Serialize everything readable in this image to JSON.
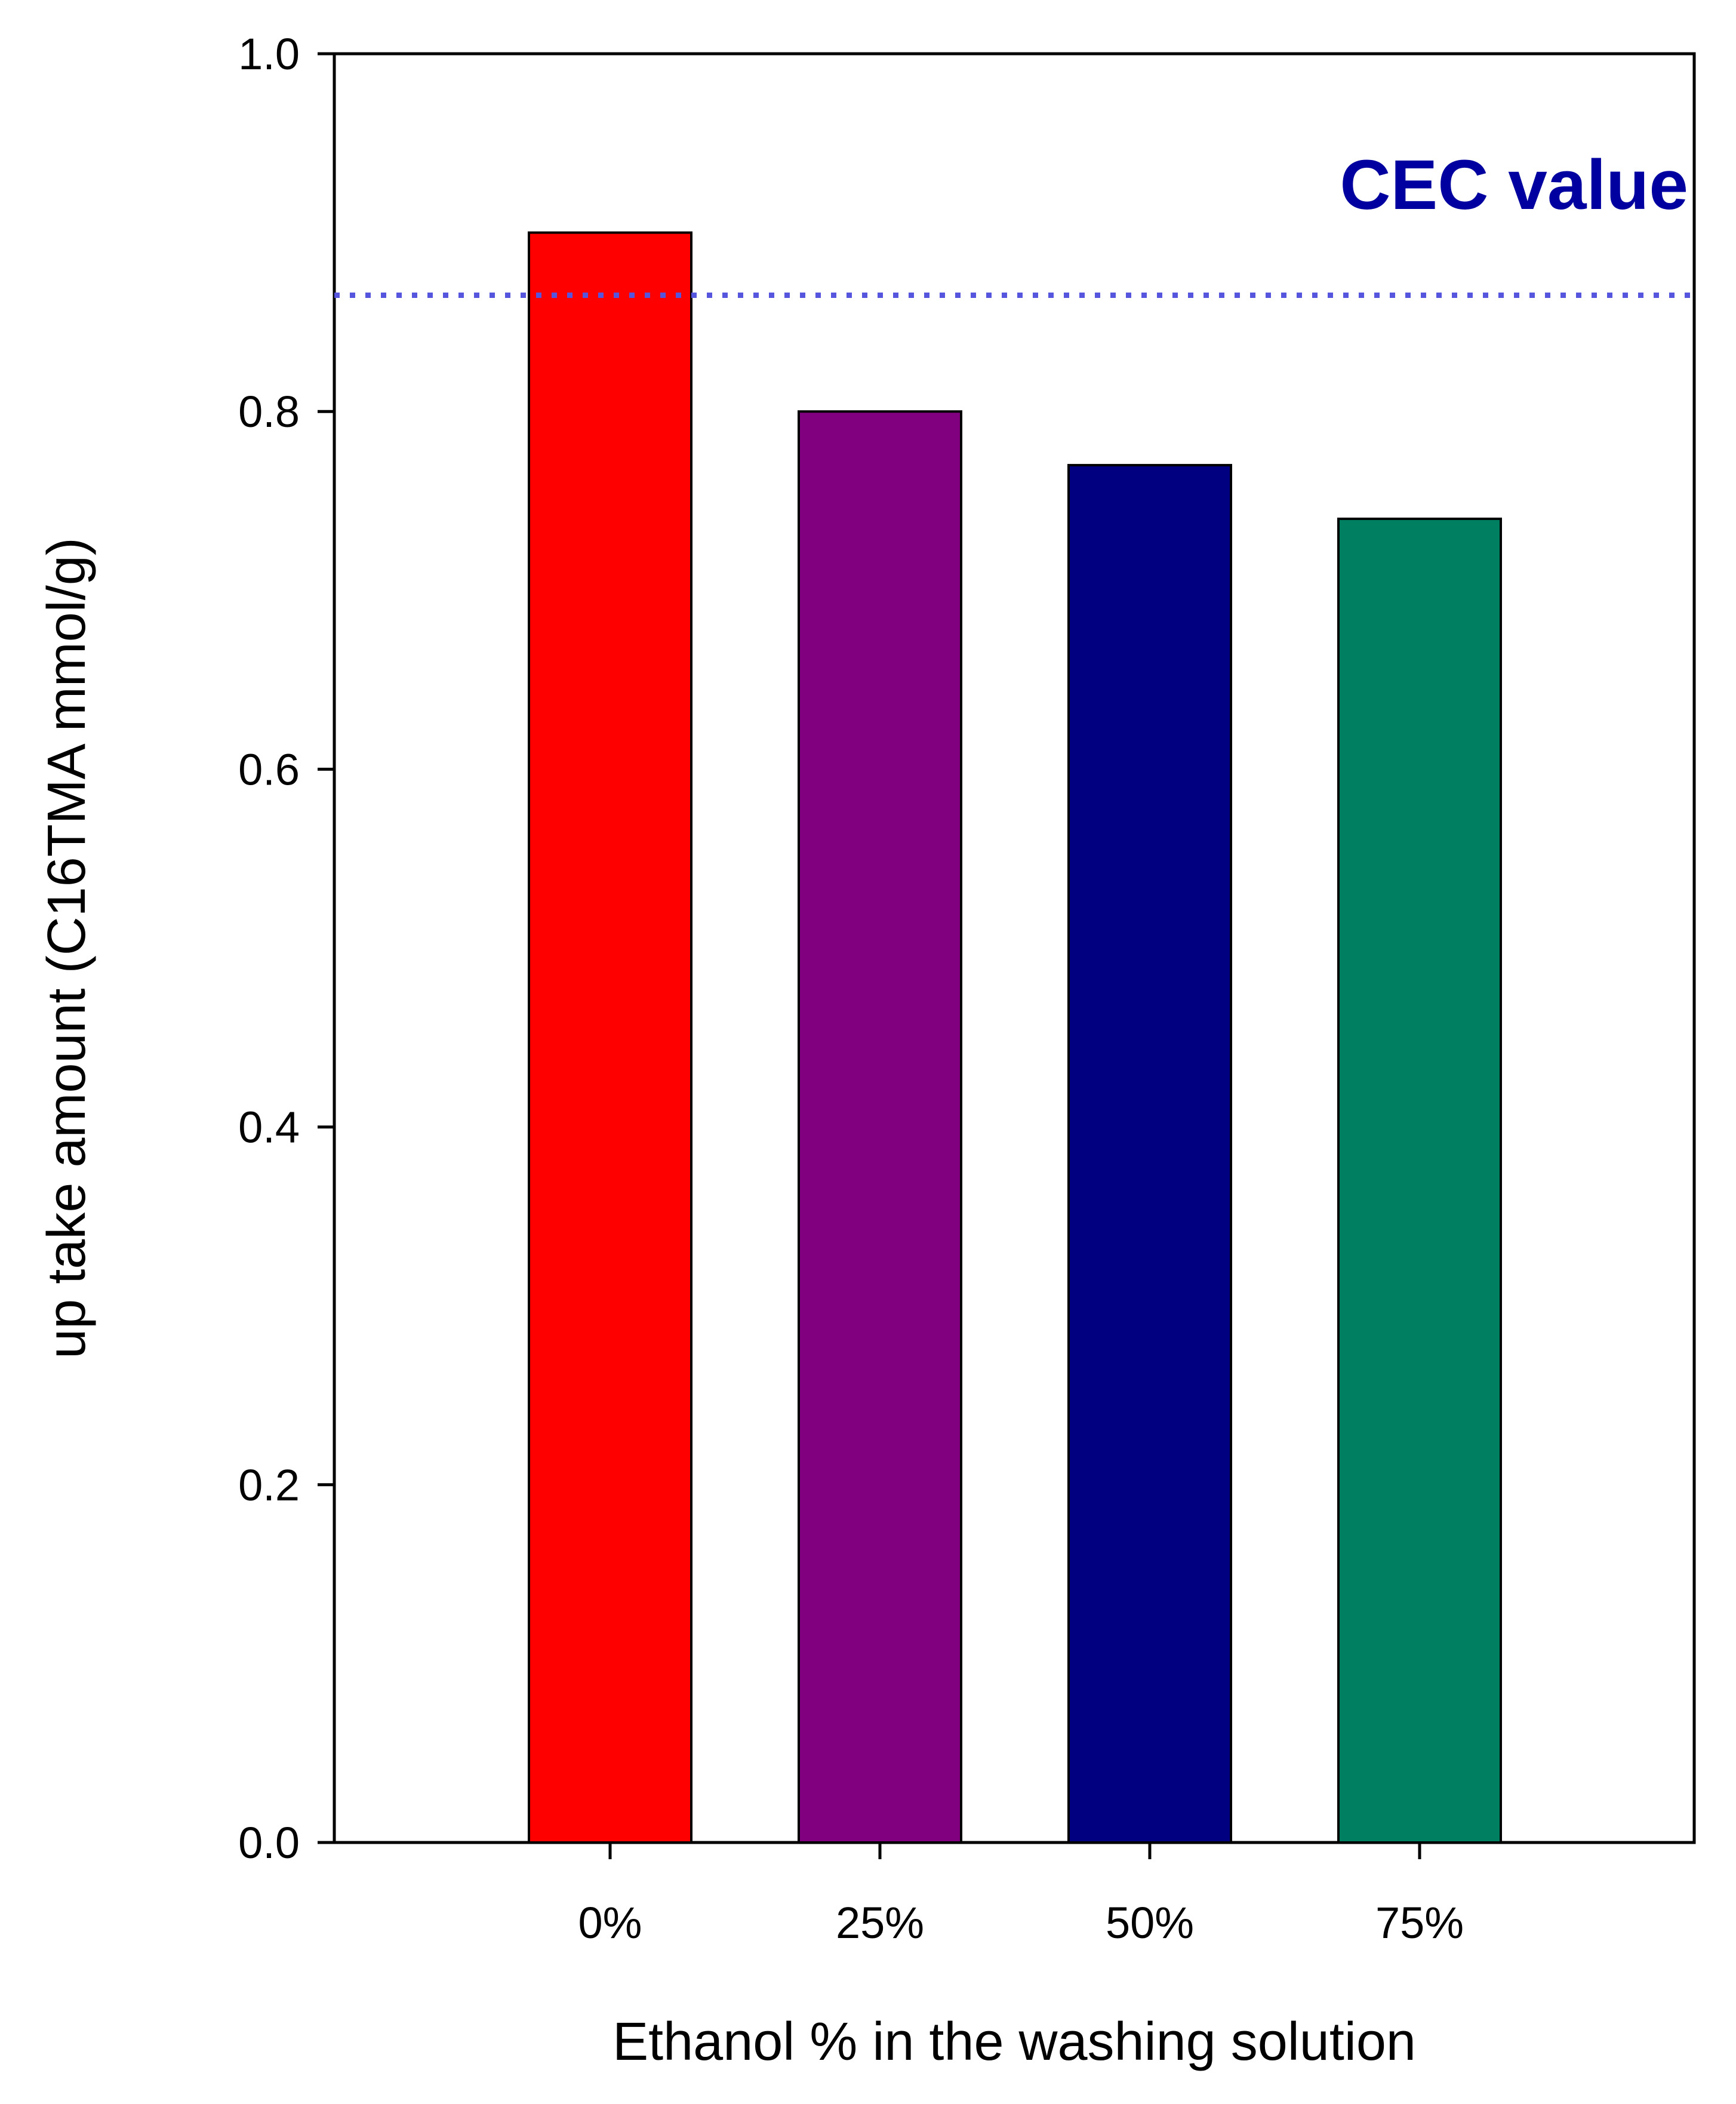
{
  "chart_data": {
    "type": "bar",
    "categories": [
      "0%",
      "25%",
      "50%",
      "75%"
    ],
    "values": [
      0.9,
      0.8,
      0.77,
      0.74
    ],
    "colors": [
      "#ff0000",
      "#800080",
      "#000080",
      "#008060"
    ],
    "xlabel": "Ethanol % in the washing solution",
    "ylabel": "up take amount (C16TMA mmol/g)",
    "ylim": [
      0.0,
      1.0
    ],
    "yticks": [
      0.0,
      0.2,
      0.4,
      0.6,
      0.8,
      1.0
    ],
    "ytick_labels": [
      "0.0",
      "0.2",
      "0.4",
      "0.6",
      "0.8",
      "1.0"
    ],
    "reference_line": {
      "label": "CEC value",
      "value": 0.865,
      "color": "#5555dd",
      "label_color": "#0000a0"
    }
  }
}
